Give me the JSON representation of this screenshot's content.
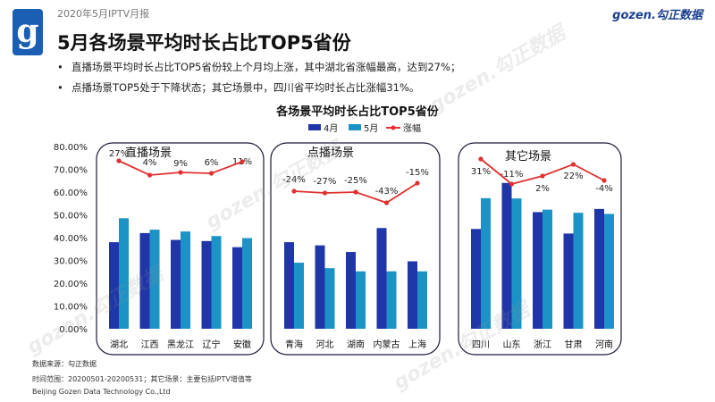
{
  "header": {
    "report_label": "2020年5月IPTV月报",
    "logo_letter": "g",
    "brand": "gozen.勾正数据",
    "title": "5月各场景平均时长占比TOP5省份"
  },
  "bullets": [
    "直播场景平均时长占比TOP5省份较上个月均上涨，其中湖北省涨幅最高，达到27%；",
    "点播场景TOP5处于下降状态；其它场景中，四川省平均时长占比涨幅31%。"
  ],
  "footer": {
    "source": "数据来源：勾正数据",
    "period": "时间范围：20200501-20200531；其它场景：主要包括IPTV增值等",
    "company": "Beijing Gozen Data Technology Co.,Ltd"
  },
  "watermark": "gozen.勾正数据",
  "colors": {
    "apr": "#1f35a8",
    "may": "#1b93c6",
    "growth": "#e03030"
  },
  "chart_data": {
    "type": "bar",
    "title": "各场景平均时长占比TOP5省份",
    "legend": [
      "4月",
      "5月",
      "涨幅"
    ],
    "legend_position": "top",
    "ylim": [
      0,
      80
    ],
    "y_ticks": [
      "0.00%",
      "10.00%",
      "20.00%",
      "30.00%",
      "40.00%",
      "50.00%",
      "60.00%",
      "70.00%",
      "80.00%"
    ],
    "groups": [
      {
        "name": "直播场景",
        "categories": [
          "湖北",
          "江西",
          "黑龙江",
          "辽宁",
          "安徽"
        ],
        "series": [
          {
            "name": "4月",
            "values": [
              38.0,
              42.0,
              39.0,
              38.5,
              35.8
            ]
          },
          {
            "name": "5月",
            "values": [
              48.5,
              43.5,
              42.7,
              40.7,
              39.8
            ]
          }
        ],
        "growth_labels": [
          "27%",
          "4%",
          "9%",
          "6%",
          "11%"
        ]
      },
      {
        "name": "点播场景",
        "categories": [
          "青海",
          "河北",
          "湖南",
          "内蒙古",
          "上海"
        ],
        "series": [
          {
            "name": "4月",
            "values": [
              38.0,
              36.6,
              33.7,
              44.2,
              29.6
            ]
          },
          {
            "name": "5月",
            "values": [
              29.0,
              26.6,
              25.2,
              25.2,
              25.2
            ]
          }
        ],
        "growth_labels": [
          "-24%",
          "-27%",
          "-25%",
          "-43%",
          "-15%"
        ]
      },
      {
        "name": "其它场景",
        "categories": [
          "四川",
          "山东",
          "浙江",
          "甘肃",
          "河南"
        ],
        "series": [
          {
            "name": "4月",
            "values": [
              43.8,
              64.0,
              51.2,
              41.8,
              52.6
            ]
          },
          {
            "name": "5月",
            "values": [
              57.3,
              57.2,
              52.3,
              50.9,
              50.4
            ]
          }
        ],
        "growth_labels": [
          "31%",
          "-11%",
          "2%",
          "22%",
          "-4%"
        ]
      }
    ]
  }
}
